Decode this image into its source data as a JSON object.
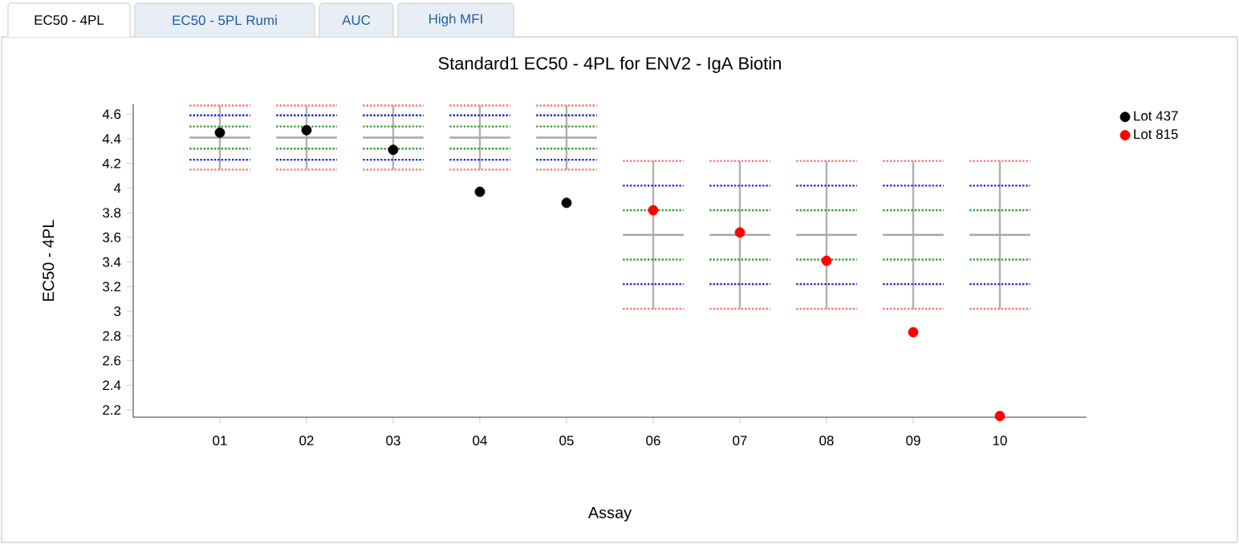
{
  "chart_data": {
    "type": "line",
    "title": "Standard1 EC50 - 4PL for ENV2 - IgA Biotin",
    "xlabel": "Assay",
    "ylabel": "EC50 - 4PL",
    "annotations": [
      "EC50 - 4PL",
      "EC50 - 5PL Rumi",
      "AUC",
      "High MFI"
    ],
    "xlim": [
      0,
      11
    ],
    "xticks": [
      {
        "value": 1,
        "label": "01"
      },
      {
        "value": 2,
        "label": "02"
      },
      {
        "value": 3,
        "label": "03"
      },
      {
        "value": 4,
        "label": "04"
      },
      {
        "value": 5,
        "label": "05"
      },
      {
        "value": 6,
        "label": "06"
      },
      {
        "value": 7,
        "label": "07"
      },
      {
        "value": 8,
        "label": "08"
      },
      {
        "value": 9,
        "label": "09"
      },
      {
        "value": 10,
        "label": "10"
      }
    ],
    "ylim": [
      2.14,
      4.68
    ],
    "yticks": [
      2.2,
      2.4,
      2.6,
      2.8,
      3,
      3.2,
      3.4,
      3.6,
      3.8,
      4,
      4.2,
      4.4,
      4.6
    ],
    "legend": "top right",
    "marker": "circle",
    "series": [
      {
        "color": "#b0b0b0",
        "line_style": "solid",
        "marker": "none",
        "x": [
          1,
          1,
          1.5,
          2,
          2,
          2.5,
          3,
          3,
          3.5,
          4,
          4,
          4.5,
          5,
          5,
          5.5,
          6,
          6,
          6.5,
          7,
          7,
          7.5,
          8,
          8,
          8.5,
          9,
          9,
          9.5,
          10,
          10
        ],
        "values": [
          4.15,
          4.67,
          null,
          4.15,
          4.67,
          null,
          4.15,
          4.67,
          null,
          4.15,
          4.67,
          null,
          4.15,
          4.67,
          null,
          3.02,
          4.22,
          null,
          3.02,
          4.22,
          null,
          3.02,
          4.22,
          null,
          3.02,
          4.22,
          null,
          3.02,
          4.22
        ]
      },
      {
        "color": "#ff7070",
        "line_style": "dotted",
        "marker": "none",
        "x": [
          0.65,
          1.35,
          1.5,
          1.65,
          2.35,
          2.5,
          2.65,
          3.35,
          3.5,
          3.65,
          4.35,
          4.5,
          4.65,
          5.35,
          5.5,
          5.65,
          6.35,
          6.5,
          6.65,
          7.35,
          7.5,
          7.65,
          8.35,
          8.5,
          8.65,
          9.35,
          9.5,
          9.65,
          10.35
        ],
        "values": [
          4.67,
          4.67,
          null,
          4.67,
          4.67,
          null,
          4.67,
          4.67,
          null,
          4.67,
          4.67,
          null,
          4.67,
          4.67,
          null,
          4.22,
          4.22,
          null,
          4.22,
          4.22,
          null,
          4.22,
          4.22,
          null,
          4.22,
          4.22,
          null,
          4.22,
          4.22
        ]
      },
      {
        "color": "#2020e0",
        "line_style": "dotted",
        "marker": "none",
        "x": [
          0.65,
          1.35,
          1.5,
          1.65,
          2.35,
          2.5,
          2.65,
          3.35,
          3.5,
          3.65,
          4.35,
          4.5,
          4.65,
          5.35,
          5.5,
          5.65,
          6.35,
          6.5,
          6.65,
          7.35,
          7.5,
          7.65,
          8.35,
          8.5,
          8.65,
          9.35,
          9.5,
          9.65,
          10.35
        ],
        "values": [
          4.59,
          4.59,
          null,
          4.59,
          4.59,
          null,
          4.59,
          4.59,
          null,
          4.59,
          4.59,
          null,
          4.59,
          4.59,
          null,
          4.02,
          4.02,
          null,
          4.02,
          4.02,
          null,
          4.02,
          4.02,
          null,
          4.02,
          4.02,
          null,
          4.02,
          4.02
        ]
      },
      {
        "color": "#3a9a3a",
        "line_style": "dotted",
        "marker": "none",
        "x": [
          0.65,
          1.35,
          1.5,
          1.65,
          2.35,
          2.5,
          2.65,
          3.35,
          3.5,
          3.65,
          4.35,
          4.5,
          4.65,
          5.35,
          5.5,
          5.65,
          6.35,
          6.5,
          6.65,
          7.35,
          7.5,
          7.65,
          8.35,
          8.5,
          8.65,
          9.35,
          9.5,
          9.65,
          10.35
        ],
        "values": [
          4.5,
          4.5,
          null,
          4.5,
          4.5,
          null,
          4.5,
          4.5,
          null,
          4.5,
          4.5,
          null,
          4.5,
          4.5,
          null,
          3.82,
          3.82,
          null,
          3.82,
          3.82,
          null,
          3.82,
          3.82,
          null,
          3.82,
          3.82,
          null,
          3.82,
          3.82
        ]
      },
      {
        "color": "#a8a8a8",
        "line_style": "solid",
        "marker": "none",
        "x": [
          0.65,
          1.35,
          1.5,
          1.65,
          2.35,
          2.5,
          2.65,
          3.35,
          3.5,
          3.65,
          4.35,
          4.5,
          4.65,
          5.35,
          5.5,
          5.65,
          6.35,
          6.5,
          6.65,
          7.35,
          7.5,
          7.65,
          8.35,
          8.5,
          8.65,
          9.35,
          9.5,
          9.65,
          10.35
        ],
        "values": [
          4.41,
          4.41,
          null,
          4.41,
          4.41,
          null,
          4.41,
          4.41,
          null,
          4.41,
          4.41,
          null,
          4.41,
          4.41,
          null,
          3.62,
          3.62,
          null,
          3.62,
          3.62,
          null,
          3.62,
          3.62,
          null,
          3.62,
          3.62,
          null,
          3.62,
          3.62
        ]
      },
      {
        "color": "#3a9a3a",
        "line_style": "dotted",
        "marker": "none",
        "x": [
          0.65,
          1.35,
          1.5,
          1.65,
          2.35,
          2.5,
          2.65,
          3.35,
          3.5,
          3.65,
          4.35,
          4.5,
          4.65,
          5.35,
          5.5,
          5.65,
          6.35,
          6.5,
          6.65,
          7.35,
          7.5,
          7.65,
          8.35,
          8.5,
          8.65,
          9.35,
          9.5,
          9.65,
          10.35
        ],
        "values": [
          4.32,
          4.32,
          null,
          4.32,
          4.32,
          null,
          4.32,
          4.32,
          null,
          4.32,
          4.32,
          null,
          4.32,
          4.32,
          null,
          3.42,
          3.42,
          null,
          3.42,
          3.42,
          null,
          3.42,
          3.42,
          null,
          3.42,
          3.42,
          null,
          3.42,
          3.42
        ]
      },
      {
        "color": "#2020e0",
        "line_style": "dotted",
        "marker": "none",
        "x": [
          0.65,
          1.35,
          1.5,
          1.65,
          2.35,
          2.5,
          2.65,
          3.35,
          3.5,
          3.65,
          4.35,
          4.5,
          4.65,
          5.35,
          5.5,
          5.65,
          6.35,
          6.5,
          6.65,
          7.35,
          7.5,
          7.65,
          8.35,
          8.5,
          8.65,
          9.35,
          9.5,
          9.65,
          10.35
        ],
        "values": [
          4.23,
          4.23,
          null,
          4.23,
          4.23,
          null,
          4.23,
          4.23,
          null,
          4.23,
          4.23,
          null,
          4.23,
          4.23,
          null,
          3.22,
          3.22,
          null,
          3.22,
          3.22,
          null,
          3.22,
          3.22,
          null,
          3.22,
          3.22,
          null,
          3.22,
          3.22
        ]
      },
      {
        "color": "#ff7070",
        "line_style": "dotted",
        "marker": "none",
        "x": [
          0.65,
          1.35,
          1.5,
          1.65,
          2.35,
          2.5,
          2.65,
          3.35,
          3.5,
          3.65,
          4.35,
          4.5,
          4.65,
          5.35,
          5.5,
          5.65,
          6.35,
          6.5,
          6.65,
          7.35,
          7.5,
          7.65,
          8.35,
          8.5,
          8.65,
          9.35,
          9.5,
          9.65,
          10.35
        ],
        "values": [
          4.15,
          4.15,
          null,
          4.15,
          4.15,
          null,
          4.15,
          4.15,
          null,
          4.15,
          4.15,
          null,
          4.15,
          4.15,
          null,
          3.02,
          3.02,
          null,
          3.02,
          3.02,
          null,
          3.02,
          3.02,
          null,
          3.02,
          3.02,
          null,
          3.02,
          3.02
        ]
      },
      {
        "type": "scatter",
        "name": "Lot 437",
        "color": "#000000",
        "x": [
          1,
          2,
          3,
          4,
          5
        ],
        "values": [
          4.45,
          4.47,
          4.31,
          3.97,
          3.88
        ]
      },
      {
        "type": "scatter",
        "name": "Lot 815",
        "color": "#ff0000",
        "x": [
          6,
          7,
          8,
          9,
          10
        ],
        "values": [
          3.82,
          3.64,
          3.41,
          2.83,
          2.15
        ]
      }
    ]
  }
}
